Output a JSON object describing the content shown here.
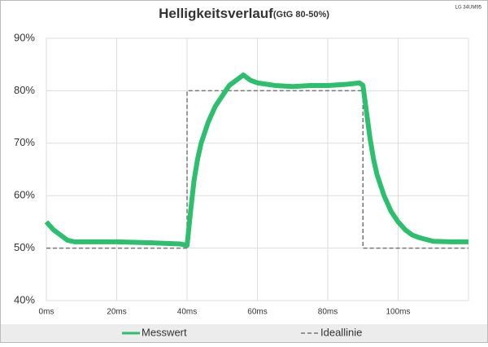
{
  "chart_data": {
    "type": "line",
    "title": "Helligkeitsverlauf",
    "subtitle": "(GtG 80-50%)",
    "annotation": "LG 34UM95",
    "xlim": [
      0,
      120
    ],
    "xticks": [
      {
        "value": 0,
        "label": "0ms"
      },
      {
        "value": 20,
        "label": "20ms"
      },
      {
        "value": 40,
        "label": "40ms"
      },
      {
        "value": 60,
        "label": "60ms"
      },
      {
        "value": 80,
        "label": "80ms"
      },
      {
        "value": 100,
        "label": "100ms"
      }
    ],
    "ylim": [
      40,
      90
    ],
    "yticks": [
      {
        "value": 40,
        "label": "40%"
      },
      {
        "value": 50,
        "label": "50%"
      },
      {
        "value": 60,
        "label": "60%"
      },
      {
        "value": 70,
        "label": "70%"
      },
      {
        "value": 80,
        "label": "80%"
      },
      {
        "value": 90,
        "label": "90%"
      }
    ],
    "grid": true,
    "series": [
      {
        "name": "Messwert",
        "color": "#2dbf6e",
        "style": "solid",
        "x": [
          0,
          2,
          4,
          6,
          8,
          12,
          20,
          30,
          38,
          40,
          41,
          42,
          43,
          44,
          46,
          48,
          50,
          52,
          54,
          56,
          58,
          60,
          65,
          70,
          75,
          80,
          85,
          89,
          90,
          91,
          92,
          93,
          94,
          96,
          98,
          100,
          102,
          104,
          106,
          110,
          115,
          120
        ],
        "values": [
          55,
          53.5,
          52.5,
          51.5,
          51.2,
          51.2,
          51.2,
          51,
          50.8,
          50.5,
          57,
          63,
          67,
          70,
          74,
          77,
          79,
          81,
          82,
          83,
          82,
          81.5,
          81,
          80.8,
          81,
          81,
          81.2,
          81.5,
          81,
          76,
          71,
          67,
          64,
          60,
          57,
          55,
          53.5,
          52.5,
          52,
          51.3,
          51.2,
          51.2
        ]
      },
      {
        "name": "Ideallinie",
        "color": "#777777",
        "style": "dashed",
        "x": [
          0,
          40,
          40,
          90,
          90,
          120
        ],
        "values": [
          50,
          50,
          80,
          80,
          50,
          50
        ]
      }
    ]
  }
}
